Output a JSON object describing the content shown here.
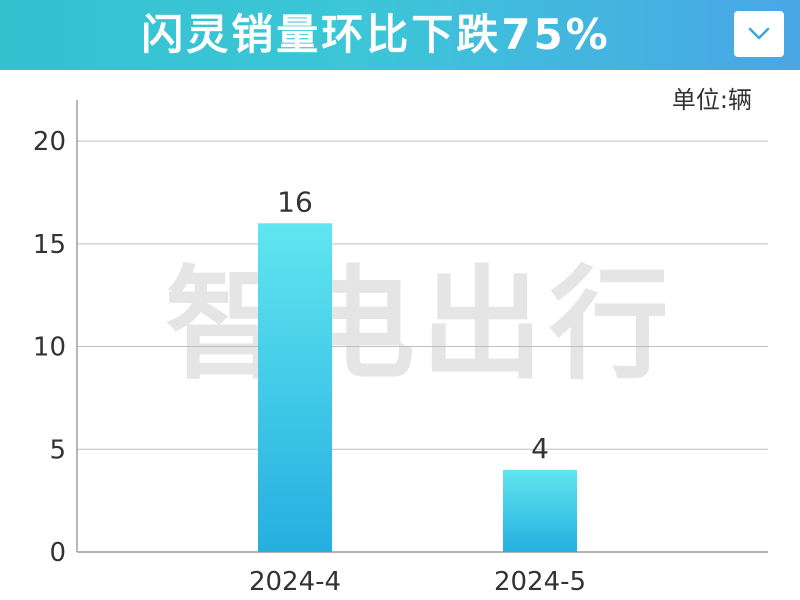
{
  "header": {
    "title": "闪灵销量环比下跌75%"
  },
  "dropdown": {
    "icon": "chevron-down-icon"
  },
  "unit_label": "单位:辆",
  "watermark": {
    "text": "智电出行",
    "icon": "lightning-bolt-icon"
  },
  "colors": {
    "header_start": "#34c2cf",
    "header_end": "#4aa6e6",
    "bar_top": "#5fe6f0",
    "bar_bottom": "#26aee0",
    "grid": "#bfbfbf",
    "axis": "#888888"
  },
  "chart_data": {
    "type": "bar",
    "title": "闪灵销量环比下跌75%",
    "xlabel": "",
    "ylabel": "",
    "unit": "单位:辆",
    "categories": [
      "2024-4",
      "2024-5"
    ],
    "values": [
      16,
      4
    ],
    "data_labels": [
      "16",
      "4"
    ],
    "ylim": [
      0,
      22
    ],
    "yticks": [
      0,
      5,
      10,
      15,
      20
    ],
    "ytick_labels": [
      "0",
      "5",
      "10",
      "15",
      "20"
    ],
    "grid": true,
    "legend": "none"
  }
}
